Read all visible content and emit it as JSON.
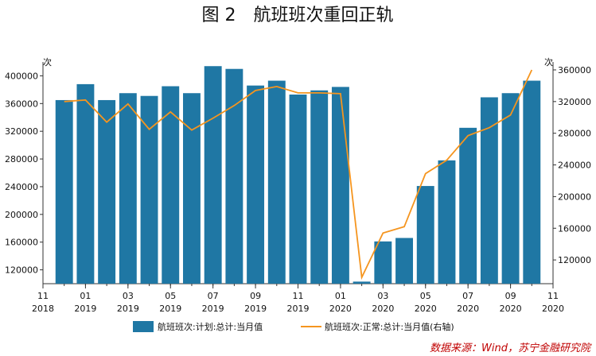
{
  "chart_data": {
    "type": "bar",
    "title": "图 2　航班班次重回正轨",
    "left_axis_unit": "次",
    "right_axis_unit": "次",
    "x_tick_labels": [
      [
        "11",
        "2018"
      ],
      [
        "01",
        "2019"
      ],
      [
        "03",
        "2019"
      ],
      [
        "05",
        "2019"
      ],
      [
        "07",
        "2019"
      ],
      [
        "09",
        "2019"
      ],
      [
        "11",
        "2019"
      ],
      [
        "01",
        "2020"
      ],
      [
        "03",
        "2020"
      ],
      [
        "05",
        "2020"
      ],
      [
        "07",
        "2020"
      ],
      [
        "09",
        "2020"
      ],
      [
        "11",
        "2020"
      ]
    ],
    "months": [
      "2018-12",
      "2019-01",
      "2019-02",
      "2019-03",
      "2019-04",
      "2019-05",
      "2019-06",
      "2019-07",
      "2019-08",
      "2019-09",
      "2019-10",
      "2019-11",
      "2019-12",
      "2020-01",
      "2020-02",
      "2020-03",
      "2020-04",
      "2020-05",
      "2020-06",
      "2020-07",
      "2020-08",
      "2020-09",
      "2020-10"
    ],
    "series": [
      {
        "name": "航班班次:计划:总计:当月值",
        "type": "bar",
        "axis": "left",
        "color": "#1f77a4",
        "values": [
          365000,
          388000,
          365000,
          375000,
          371000,
          385000,
          375000,
          414000,
          410000,
          386000,
          393000,
          373000,
          379000,
          384000,
          103000,
          161000,
          166000,
          241000,
          278000,
          325000,
          369000,
          375000,
          393000
        ]
      },
      {
        "name": "航班班次:正常:总计:当月值(右轴)",
        "type": "line",
        "axis": "right",
        "color": "#f5951f",
        "values": [
          320000,
          322000,
          294000,
          317000,
          285000,
          307000,
          284000,
          299000,
          315000,
          334000,
          339000,
          331000,
          331000,
          330000,
          98000,
          154000,
          162000,
          229000,
          246000,
          277000,
          287000,
          303000,
          360000
        ]
      }
    ],
    "left_ylim": [
      100000,
      420000
    ],
    "left_yticks": [
      120000,
      160000,
      200000,
      240000,
      280000,
      320000,
      360000,
      400000
    ],
    "right_ylim": [
      90000,
      370000
    ],
    "right_yticks": [
      120000,
      160000,
      200000,
      240000,
      280000,
      320000,
      360000
    ],
    "legend_position": "bottom",
    "grid": false
  },
  "source": "数据来源：Wind，苏宁金融研究院"
}
